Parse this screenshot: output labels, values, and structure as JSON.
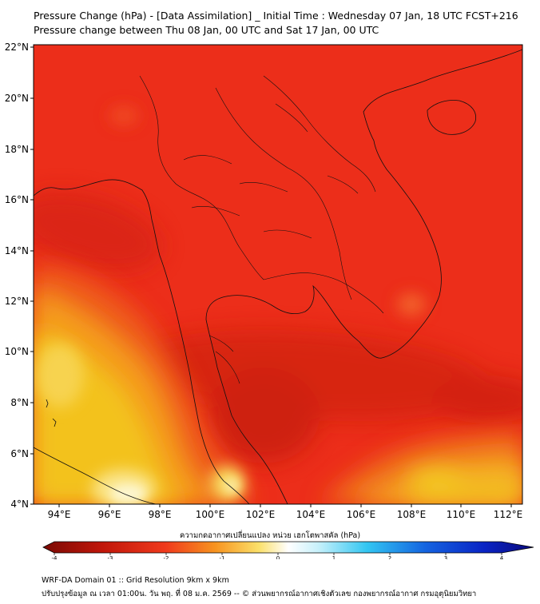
{
  "header": {
    "title": "Pressure Change (hPa) - [Data Assimilation] _ Initial Time : Wednesday 07 Jan, 18 UTC FCST+216",
    "subtitle": "Pressure change between Thu 08 Jan, 00 UTC and Sat 17 Jan, 00 UTC"
  },
  "map": {
    "lat_labels": [
      "22°N",
      "20°N",
      "18°N",
      "16°N",
      "14°N",
      "12°N",
      "10°N",
      "8°N",
      "6°N",
      "4°N"
    ],
    "lon_labels": [
      "94°E",
      "96°E",
      "98°E",
      "100°E",
      "102°E",
      "104°E",
      "106°E",
      "108°E",
      "110°E",
      "112°E"
    ],
    "colors": {
      "background_field": "#ec2e1a",
      "deep_negative": "#b91409",
      "yellow": "#f3c21f",
      "pale": "#fbf2b6"
    }
  },
  "colorbar": {
    "title": "ความกดอากาศเปลี่ยนแปลง หน่วย เฮกโตพาสคัล (hPa)",
    "range": [
      -4,
      4
    ],
    "tick_labels": [
      "-4",
      "-3",
      "-2",
      "-1",
      "0",
      "1",
      "2",
      "3",
      "4"
    ]
  },
  "footer": {
    "line1": "WRF-DA Domain 01 :: Grid Resolution 9km x 9km",
    "line2": "ปรับปรุงข้อมูล ณ เวลา 01:00น. วัน พฤ. ที่ 08 ม.ค. 2569 -- © ส่วนพยากรณ์อากาศเชิงตัวเลข กองพยากรณ์อากาศ กรมอุตุนิยมวิทยา"
  }
}
